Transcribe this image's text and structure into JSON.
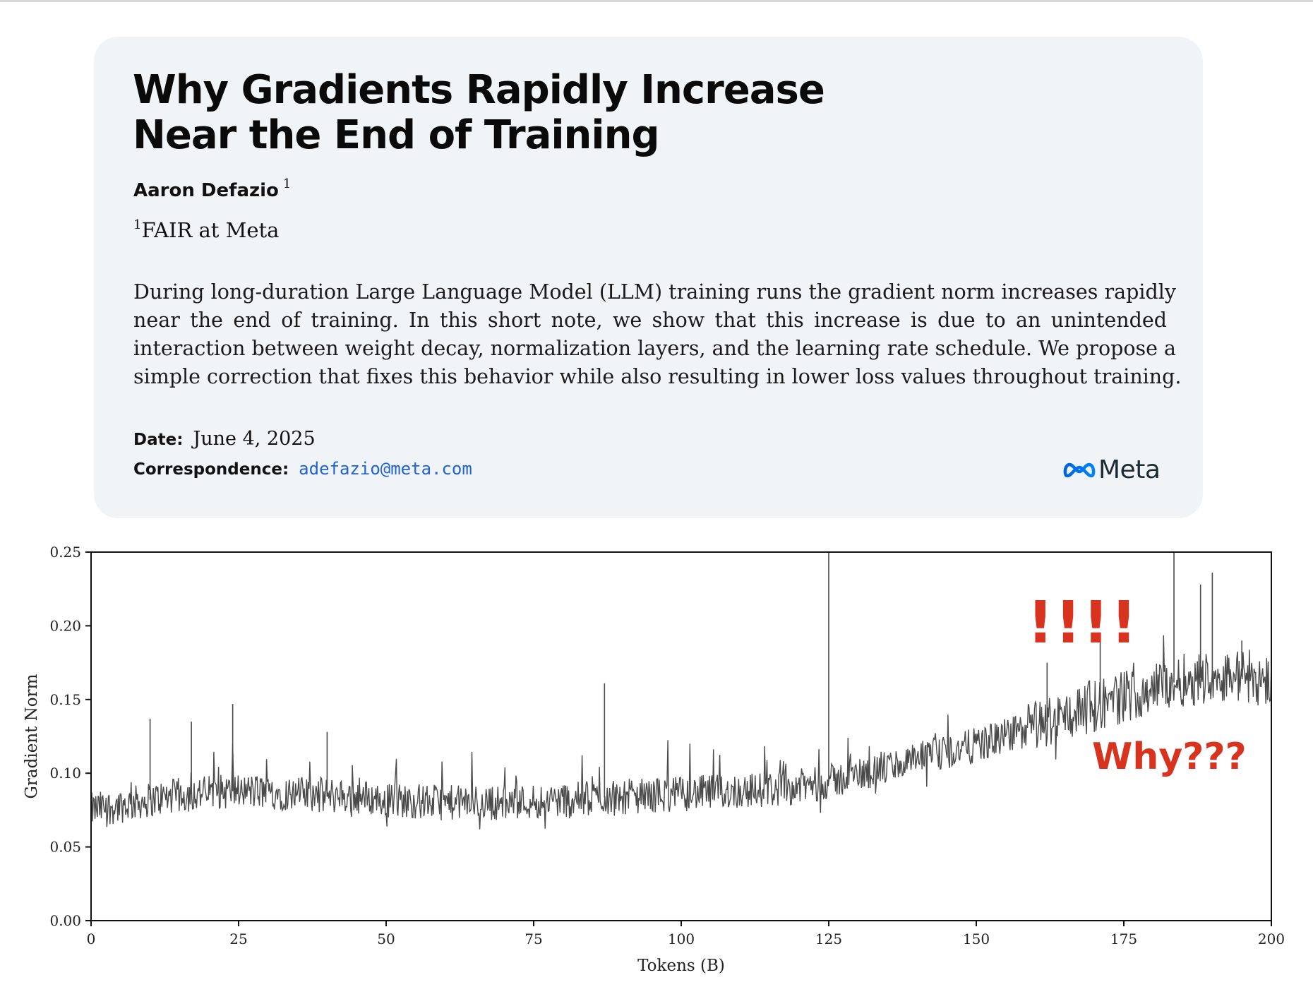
{
  "paper": {
    "title_lines": [
      "Why Gradients Rapidly Increase",
      "Near the End of Training"
    ],
    "author": "Aaron Defazio",
    "author_mark": "1",
    "affiliation_mark": "1",
    "affiliation": "FAIR at Meta",
    "abstract_lines": [
      "During long-duration Large Language Model (LLM) training runs the gradient norm increases rapidly",
      "near the end of training.  In this short note, we show that this increase is due to an unintended",
      "interaction between weight decay, normalization layers, and the learning rate schedule. We propose a",
      "simple correction that fixes this behavior while also resulting in lower loss values throughout training."
    ],
    "date_label": "Date:",
    "date_value": "June 4, 2025",
    "correspondence_label": "Correspondence:",
    "correspondence_email": "adefazio@meta.com",
    "logo_text": "Meta",
    "logo_icon": "meta-infinity-icon",
    "link_color": "#1f63d6",
    "card_color": "#f1f4f7"
  },
  "annotations": {
    "exclaim": "!!!!",
    "why": "Why???",
    "color": "#d8331f"
  },
  "chart_data": {
    "type": "line",
    "xlabel": "Tokens (B)",
    "ylabel": "Gradient Norm",
    "xlim": [
      0,
      200
    ],
    "ylim": [
      0,
      0.25
    ],
    "xticks": [
      0,
      25,
      50,
      75,
      100,
      125,
      150,
      175,
      200
    ],
    "yticks": [
      "0.00",
      "0.05",
      "0.10",
      "0.15",
      "0.20",
      "0.25"
    ],
    "grid": false,
    "line_color": "#4a4a4a",
    "series": [
      {
        "x": [
          0,
          5,
          10,
          15,
          20,
          25,
          30,
          35,
          40,
          45,
          50,
          55,
          60,
          65,
          70,
          75,
          80,
          85,
          90,
          95,
          100,
          105,
          110,
          115,
          120,
          125,
          130,
          135,
          140,
          145,
          150,
          155,
          160,
          165,
          170,
          175,
          180,
          185,
          190,
          195,
          200
        ],
        "values": [
          0.075,
          0.078,
          0.082,
          0.085,
          0.087,
          0.088,
          0.087,
          0.086,
          0.085,
          0.084,
          0.082,
          0.081,
          0.08,
          0.08,
          0.08,
          0.081,
          0.082,
          0.083,
          0.084,
          0.085,
          0.086,
          0.087,
          0.088,
          0.089,
          0.091,
          0.094,
          0.099,
          0.104,
          0.109,
          0.114,
          0.119,
          0.125,
          0.132,
          0.139,
          0.146,
          0.152,
          0.158,
          0.163,
          0.166,
          0.166,
          0.162
        ],
        "spikes": [
          [
            10,
            0.137
          ],
          [
            17,
            0.135
          ],
          [
            24,
            0.147
          ],
          [
            40,
            0.128
          ],
          [
            87,
            0.161
          ],
          [
            125,
            0.25
          ],
          [
            162,
            0.175
          ],
          [
            171,
            0.19
          ],
          [
            183.5,
            0.25
          ],
          [
            188,
            0.228
          ],
          [
            190,
            0.236
          ],
          [
            195,
            0.19
          ]
        ]
      }
    ]
  }
}
